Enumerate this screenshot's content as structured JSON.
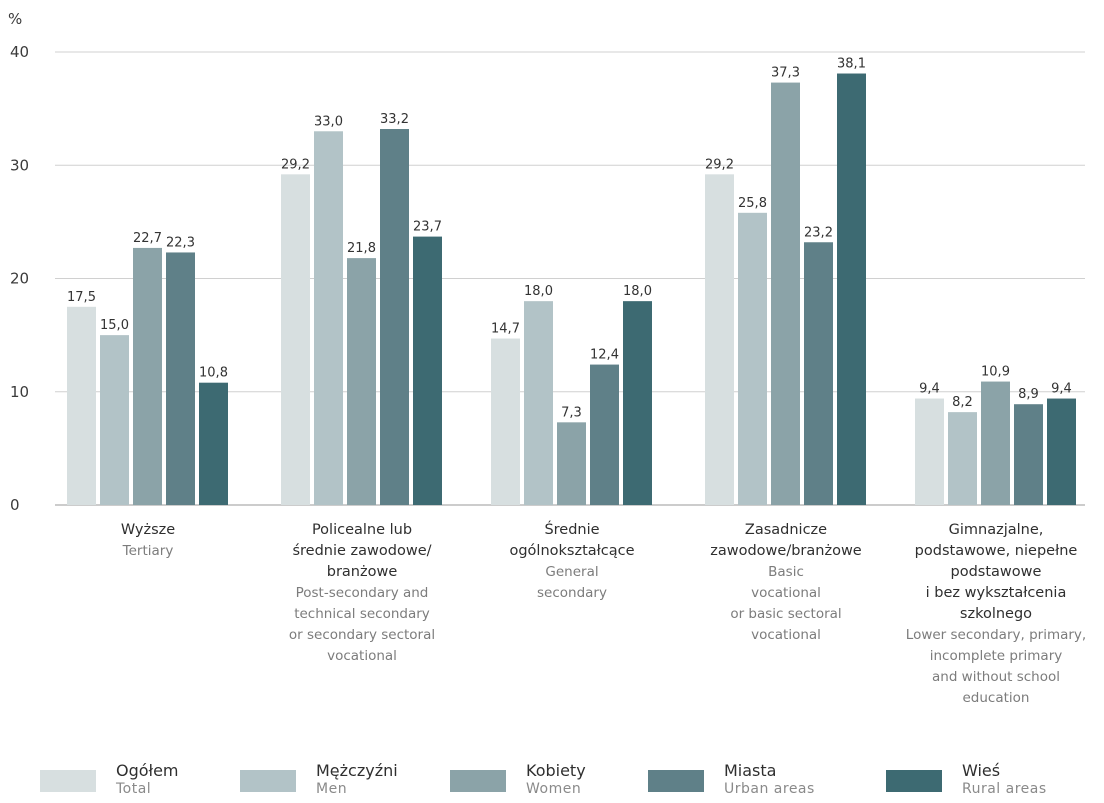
{
  "chart_data": {
    "type": "bar",
    "ylabel": "%",
    "ylim": [
      0,
      40
    ],
    "yticks": [
      "0",
      "10",
      "20",
      "30",
      "40"
    ],
    "grid": true,
    "legend_position": "bottom",
    "categories": [
      {
        "pl": [
          "Wyższe"
        ],
        "en": [
          "Tertiary"
        ]
      },
      {
        "pl": [
          "Policealne lub",
          "średnie zawodowe/",
          "branżowe"
        ],
        "en": [
          "Post-secondary and",
          "technical secondary",
          "or secondary sectoral",
          "vocational"
        ]
      },
      {
        "pl": [
          "Średnie",
          "ogólnokształcące"
        ],
        "en": [
          "General",
          "secondary"
        ]
      },
      {
        "pl": [
          "Zasadnicze",
          "zawodowe/branżowe"
        ],
        "en": [
          "Basic",
          "vocational",
          "or basic sectoral",
          "vocational"
        ]
      },
      {
        "pl": [
          "Gimnazjalne,",
          "podstawowe, niepełne",
          "podstawowe",
          "i bez wykształcenia",
          "szkolnego"
        ],
        "en": [
          "Lower secondary, primary,",
          "incomplete primary",
          "and without school",
          "education"
        ]
      }
    ],
    "series": [
      {
        "name": "Ogółem",
        "name_en": "Total",
        "color": "#d7dfe0",
        "values": [
          17.5,
          29.2,
          14.7,
          29.2,
          9.4
        ],
        "labels": [
          "17,5",
          "29,2",
          "14,7",
          "29,2",
          "9,4"
        ]
      },
      {
        "name": "Mężczyźni",
        "name_en": "Men",
        "color": "#b2c3c7",
        "values": [
          15.0,
          33.0,
          18.0,
          25.8,
          8.2
        ],
        "labels": [
          "15,0",
          "33,0",
          "18,0",
          "25,8",
          "8,2"
        ]
      },
      {
        "name": "Kobiety",
        "name_en": "Women",
        "color": "#8ba3a8",
        "values": [
          22.7,
          21.8,
          7.3,
          37.3,
          10.9
        ],
        "labels": [
          "22,7",
          "21,8",
          "7,3",
          "37,3",
          "10,9"
        ]
      },
      {
        "name": "Miasta",
        "name_en": "Urban areas",
        "color": "#5f8088",
        "values": [
          22.3,
          33.2,
          12.4,
          23.2,
          8.9
        ],
        "labels": [
          "22,3",
          "33,2",
          "12,4",
          "23,2",
          "8,9"
        ]
      },
      {
        "name": "Wieś",
        "name_en": "Rural areas",
        "color": "#3d6a72",
        "values": [
          10.8,
          23.7,
          18.0,
          38.1,
          9.4
        ],
        "labels": [
          "10,8",
          "23,7",
          "18,0",
          "38,1",
          "9,4"
        ]
      }
    ]
  }
}
